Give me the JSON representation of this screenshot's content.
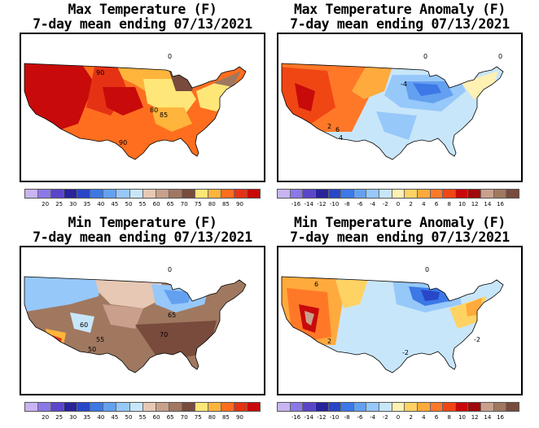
{
  "panels": [
    {
      "title_line1": "Max Temperature (F)",
      "title_line2": "7-day mean ending 07/13/2021",
      "map_labels": [
        "90",
        "80",
        "85",
        "90",
        "0"
      ],
      "colorbar": {
        "colors": [
          "#c8b4f0",
          "#8c78e6",
          "#5a46c8",
          "#28239b",
          "#2846c8",
          "#3c78e6",
          "#64a0f0",
          "#96c8fa",
          "#c8e6fa",
          "#e6c8b4",
          "#c8a08c",
          "#a07860",
          "#784b3c",
          "#ffe678",
          "#ffb43c",
          "#ff6e1e",
          "#e63214",
          "#c80a0a"
        ],
        "ticks": [
          "",
          "20",
          "25",
          "30",
          "35",
          "40",
          "45",
          "50",
          "55",
          "60",
          "65",
          "70",
          "75",
          "80",
          "85",
          "90",
          ""
        ]
      }
    },
    {
      "title_line1": "Max Temperature Anomaly (F)",
      "title_line2": "7-day mean ending 07/13/2021",
      "map_labels": [
        "0",
        "-4",
        "2",
        "6",
        "4",
        "0"
      ],
      "colorbar": {
        "colors": [
          "#c8b4f0",
          "#8c78e6",
          "#5a46c8",
          "#28239b",
          "#2846c8",
          "#3c78e6",
          "#64a0f0",
          "#96c8fa",
          "#c8e6fa",
          "#fff0b4",
          "#ffd264",
          "#ffaa3c",
          "#ff7828",
          "#f04614",
          "#c80a0a",
          "#a00a0a",
          "#c8a08c",
          "#a07860",
          "#784b3c"
        ],
        "ticks": [
          "",
          "-16",
          "-14",
          "-12",
          "-10",
          "-8",
          "-6",
          "-4",
          "-2",
          "0",
          "2",
          "4",
          "6",
          "8",
          "10",
          "12",
          "14",
          "16",
          ""
        ]
      }
    },
    {
      "title_line1": "Min Temperature (F)",
      "title_line2": "7-day mean ending 07/13/2021",
      "map_labels": [
        "65",
        "70",
        "55",
        "60",
        "50",
        "0"
      ],
      "colorbar": {
        "colors": [
          "#c8b4f0",
          "#8c78e6",
          "#5a46c8",
          "#28239b",
          "#2846c8",
          "#3c78e6",
          "#64a0f0",
          "#96c8fa",
          "#c8e6fa",
          "#e6c8b4",
          "#c8a08c",
          "#a07860",
          "#784b3c",
          "#ffe678",
          "#ffb43c",
          "#ff6e1e",
          "#e63214",
          "#c80a0a"
        ],
        "ticks": [
          "",
          "20",
          "25",
          "30",
          "35",
          "40",
          "45",
          "50",
          "55",
          "60",
          "65",
          "70",
          "75",
          "80",
          "85",
          "90",
          ""
        ]
      }
    },
    {
      "title_line1": "Min Temperature Anomaly (F)",
      "title_line2": "7-day mean ending 07/13/2021",
      "map_labels": [
        "6",
        "-2",
        "2",
        "-2",
        "0"
      ],
      "colorbar": {
        "colors": [
          "#c8b4f0",
          "#8c78e6",
          "#5a46c8",
          "#28239b",
          "#2846c8",
          "#3c78e6",
          "#64a0f0",
          "#96c8fa",
          "#c8e6fa",
          "#fff0b4",
          "#ffd264",
          "#ffaa3c",
          "#ff7828",
          "#f04614",
          "#c80a0a",
          "#a00a0a",
          "#c8a08c",
          "#a07860",
          "#784b3c"
        ],
        "ticks": [
          "",
          "-16",
          "-14",
          "-12",
          "-10",
          "-8",
          "-6",
          "-4",
          "-2",
          "0",
          "2",
          "4",
          "6",
          "8",
          "10",
          "12",
          "14",
          "16",
          ""
        ]
      }
    }
  ]
}
